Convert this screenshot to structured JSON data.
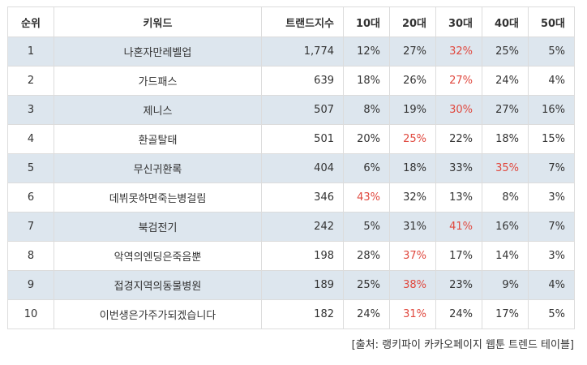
{
  "headers": [
    "순위",
    "키워드",
    "트랜드지수",
    "10대",
    "20대",
    "30대",
    "40대",
    "50대"
  ],
  "rows": [
    {
      "rank": "1",
      "keyword": "나혼자만레벨업",
      "index": "1,774",
      "ages": [
        "12%",
        "27%",
        "32%",
        "25%",
        "5%"
      ],
      "highlight": 2
    },
    {
      "rank": "2",
      "keyword": "가드패스",
      "index": "639",
      "ages": [
        "18%",
        "26%",
        "27%",
        "24%",
        "4%"
      ],
      "highlight": 2
    },
    {
      "rank": "3",
      "keyword": "제니스",
      "index": "507",
      "ages": [
        "8%",
        "19%",
        "30%",
        "27%",
        "16%"
      ],
      "highlight": 2
    },
    {
      "rank": "4",
      "keyword": "환골탈태",
      "index": "501",
      "ages": [
        "20%",
        "25%",
        "22%",
        "18%",
        "15%"
      ],
      "highlight": 1
    },
    {
      "rank": "5",
      "keyword": "무신귀환록",
      "index": "404",
      "ages": [
        "6%",
        "18%",
        "33%",
        "35%",
        "7%"
      ],
      "highlight": 3
    },
    {
      "rank": "6",
      "keyword": "데뷔못하면죽는병걸림",
      "index": "346",
      "ages": [
        "43%",
        "32%",
        "13%",
        "8%",
        "3%"
      ],
      "highlight": 0
    },
    {
      "rank": "7",
      "keyword": "북검전기",
      "index": "242",
      "ages": [
        "5%",
        "31%",
        "41%",
        "16%",
        "7%"
      ],
      "highlight": 2
    },
    {
      "rank": "8",
      "keyword": "악역의엔딩은죽음뿐",
      "index": "198",
      "ages": [
        "28%",
        "37%",
        "17%",
        "14%",
        "3%"
      ],
      "highlight": 1
    },
    {
      "rank": "9",
      "keyword": "접경지역의동물병원",
      "index": "189",
      "ages": [
        "25%",
        "38%",
        "23%",
        "9%",
        "4%"
      ],
      "highlight": 1
    },
    {
      "rank": "10",
      "keyword": "이번생은가주가되겠습니다",
      "index": "182",
      "ages": [
        "24%",
        "31%",
        "24%",
        "17%",
        "5%"
      ],
      "highlight": 1
    }
  ],
  "source": "[출처: 랭키파이 카카오페이지 웹툰 트렌드 테이블]",
  "colors": {
    "highlight": "#e0483e",
    "stripe": "#dde6ee",
    "border": "#dcdcdc"
  }
}
